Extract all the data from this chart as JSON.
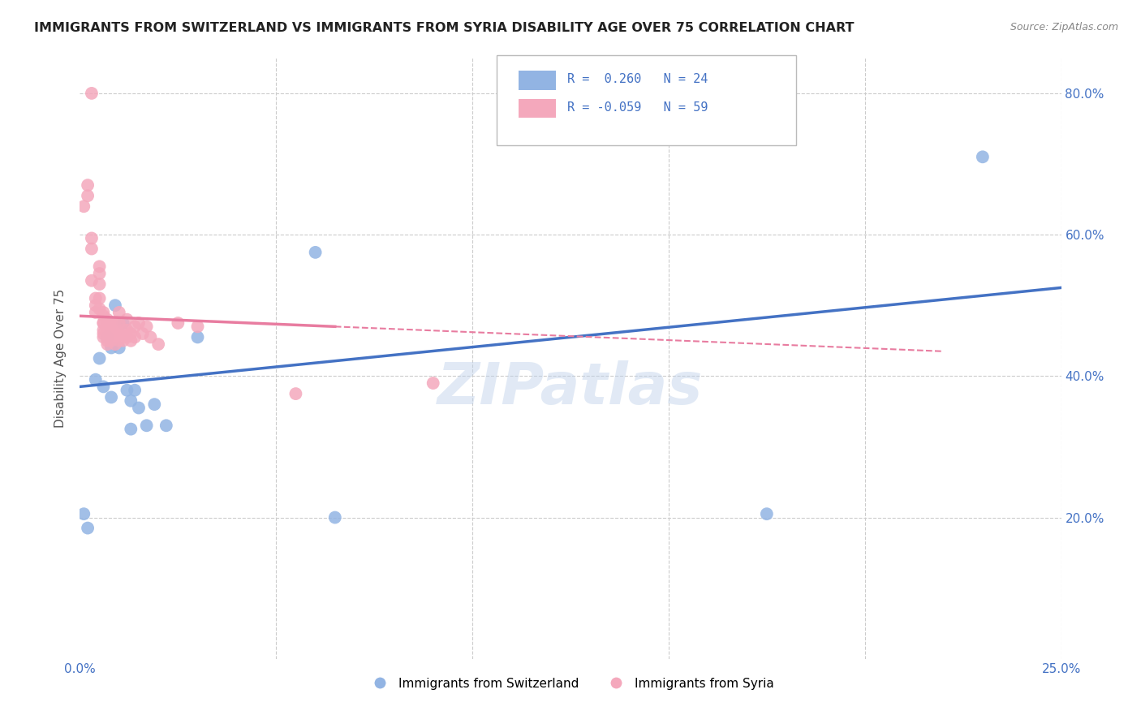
{
  "title": "IMMIGRANTS FROM SWITZERLAND VS IMMIGRANTS FROM SYRIA DISABILITY AGE OVER 75 CORRELATION CHART",
  "source": "Source: ZipAtlas.com",
  "ylabel": "Disability Age Over 75",
  "x_min": 0.0,
  "x_max": 0.25,
  "y_min": 0.0,
  "y_max": 0.85,
  "color_switzerland": "#92B4E3",
  "color_syria": "#F4A8BC",
  "color_switzerland_line": "#4472C4",
  "color_syria_line": "#E87CA0",
  "legend_label_switzerland": "Immigrants from Switzerland",
  "legend_label_syria": "Immigrants from Syria",
  "background_color": "#FFFFFF",
  "grid_color": "#CCCCCC",
  "watermark": "ZIPatlas",
  "sw_x": [
    0.001,
    0.002,
    0.004,
    0.005,
    0.006,
    0.007,
    0.008,
    0.009,
    0.01,
    0.011,
    0.012,
    0.013,
    0.014,
    0.015,
    0.017,
    0.019,
    0.022,
    0.03,
    0.06,
    0.065,
    0.175,
    0.23,
    0.008,
    0.013
  ],
  "sw_y": [
    0.205,
    0.185,
    0.395,
    0.425,
    0.385,
    0.455,
    0.37,
    0.5,
    0.44,
    0.475,
    0.38,
    0.365,
    0.38,
    0.355,
    0.33,
    0.36,
    0.33,
    0.455,
    0.575,
    0.2,
    0.205,
    0.71,
    0.44,
    0.325
  ],
  "sy_x": [
    0.001,
    0.002,
    0.002,
    0.003,
    0.003,
    0.003,
    0.004,
    0.004,
    0.004,
    0.005,
    0.005,
    0.005,
    0.005,
    0.005,
    0.006,
    0.006,
    0.006,
    0.006,
    0.006,
    0.006,
    0.006,
    0.007,
    0.007,
    0.007,
    0.007,
    0.007,
    0.007,
    0.008,
    0.008,
    0.008,
    0.008,
    0.008,
    0.009,
    0.009,
    0.009,
    0.009,
    0.01,
    0.01,
    0.01,
    0.01,
    0.011,
    0.011,
    0.012,
    0.012,
    0.012,
    0.013,
    0.013,
    0.014,
    0.014,
    0.015,
    0.016,
    0.017,
    0.018,
    0.02,
    0.025,
    0.03,
    0.055,
    0.09,
    0.003
  ],
  "sy_y": [
    0.64,
    0.67,
    0.655,
    0.595,
    0.58,
    0.535,
    0.51,
    0.5,
    0.49,
    0.555,
    0.545,
    0.53,
    0.51,
    0.495,
    0.49,
    0.485,
    0.475,
    0.465,
    0.455,
    0.475,
    0.46,
    0.45,
    0.445,
    0.48,
    0.465,
    0.455,
    0.46,
    0.45,
    0.475,
    0.465,
    0.455,
    0.475,
    0.475,
    0.465,
    0.455,
    0.445,
    0.49,
    0.475,
    0.46,
    0.45,
    0.465,
    0.45,
    0.48,
    0.465,
    0.455,
    0.46,
    0.45,
    0.47,
    0.455,
    0.475,
    0.46,
    0.47,
    0.455,
    0.445,
    0.475,
    0.47,
    0.375,
    0.39,
    0.8
  ],
  "title_color": "#222222",
  "axis_color": "#4472C4",
  "ylabel_color": "#555555"
}
